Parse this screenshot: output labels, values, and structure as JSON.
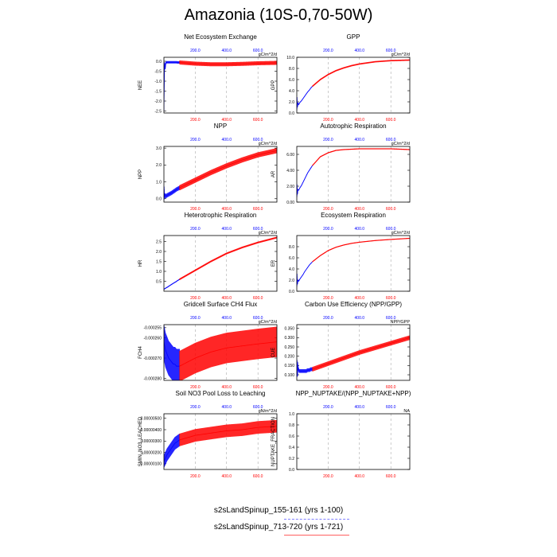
{
  "title": "Amazonia (10S-0,70-50W)",
  "legend": {
    "entries": [
      {
        "label": "s2sLandSpinup_155-161 (yrs 1-100)",
        "color": "#0000ff",
        "style": "dashed"
      },
      {
        "label": "s2sLandSpinup_713-720 (yrs 1-721)",
        "color": "#ff0000",
        "style": "solid"
      }
    ]
  },
  "chart_data": [
    {
      "type": "line",
      "title": "Net Ecosystem Exchange",
      "ylabel": "NEE",
      "units": "gC/m^2/d",
      "ylim": [
        -2.6,
        0.2
      ],
      "yticks": [
        0.0,
        -0.5,
        -1.0,
        -1.5,
        -2.0,
        -2.5
      ],
      "yticklabels": [
        "0.0",
        "-0.5",
        "-1.0",
        "-1.5",
        "-2.0",
        "-2.5"
      ],
      "xlim": [
        0,
        721
      ],
      "xticks_bottom": [
        "200.0",
        "400.0",
        "600.0"
      ],
      "xticks_top": [
        "200.0",
        "400.0",
        "600.0"
      ],
      "series": [
        {
          "name": "s2sLandSpinup_155-161",
          "color": "#0000ff",
          "x": [
            0,
            2,
            4,
            6,
            8,
            10,
            12,
            15,
            20,
            30,
            40,
            50,
            60,
            70,
            80,
            90,
            100
          ],
          "y": [
            -2.5,
            -0.6,
            -0.1,
            -0.15,
            -0.4,
            -0.2,
            -0.1,
            -0.05,
            -0.05,
            -0.05,
            -0.05,
            -0.05,
            -0.05,
            -0.05,
            -0.05,
            -0.06,
            -0.06
          ],
          "spread": 0.06
        },
        {
          "name": "s2sLandSpinup_713-720",
          "color": "#ff0000",
          "x": [
            100,
            200,
            300,
            400,
            500,
            600,
            721
          ],
          "y": [
            -0.06,
            -0.12,
            -0.15,
            -0.15,
            -0.13,
            -0.1,
            -0.08
          ],
          "spread": 0.1
        }
      ]
    },
    {
      "type": "line",
      "title": "GPP",
      "ylabel": "GPP",
      "units": "gC/m^2/d",
      "ylim": [
        0,
        10
      ],
      "yticks": [
        0,
        2,
        4,
        6,
        8,
        10
      ],
      "yticklabels": [
        "0.0",
        "2.0",
        "4.0",
        "6.0",
        "8.0",
        "10.0"
      ],
      "xlim": [
        0,
        721
      ],
      "xticks_bottom": [
        "200.0",
        "400.0",
        "600.0"
      ],
      "xticks_top": [
        "200.0",
        "400.0",
        "600.0"
      ],
      "series": [
        {
          "name": "s2sLandSpinup_155-161",
          "color": "#0000ff",
          "x": [
            0,
            2,
            5,
            8,
            12,
            20,
            30,
            40,
            50,
            60,
            70,
            80,
            90,
            100
          ],
          "y": [
            0.5,
            2.8,
            1.0,
            1.8,
            1.5,
            1.9,
            2.2,
            2.6,
            3.0,
            3.4,
            3.8,
            4.1,
            4.5,
            4.8
          ],
          "spread": 0.05
        },
        {
          "name": "s2sLandSpinup_713-720",
          "color": "#ff0000",
          "x": [
            100,
            150,
            200,
            250,
            300,
            350,
            400,
            450,
            500,
            600,
            721
          ],
          "y": [
            4.8,
            6.0,
            6.9,
            7.6,
            8.1,
            8.5,
            8.8,
            9.0,
            9.2,
            9.4,
            9.5
          ],
          "spread": 0.12
        }
      ]
    },
    {
      "type": "line",
      "title": "NPP",
      "ylabel": "NPP",
      "units": "gC/m^2/d",
      "ylim": [
        -0.2,
        3.1
      ],
      "yticks": [
        0,
        1,
        2,
        3
      ],
      "yticklabels": [
        "0.0",
        "1.0",
        "2.0",
        "3.0"
      ],
      "xlim": [
        0,
        721
      ],
      "xticks_bottom": [
        "200.0",
        "400.0",
        "600.0"
      ],
      "xticks_top": [
        "200.0",
        "400.0",
        "600.0"
      ],
      "series": [
        {
          "name": "s2sLandSpinup_155-161",
          "color": "#0000ff",
          "x": [
            0,
            2,
            5,
            8,
            12,
            20,
            30,
            40,
            50,
            60,
            70,
            80,
            90,
            100
          ],
          "y": [
            -0.1,
            0.6,
            0.1,
            0.2,
            0.15,
            0.2,
            0.25,
            0.3,
            0.35,
            0.42,
            0.48,
            0.55,
            0.6,
            0.65
          ],
          "spread": 0.12
        },
        {
          "name": "s2sLandSpinup_713-720",
          "color": "#ff0000",
          "x": [
            100,
            200,
            300,
            400,
            500,
            600,
            721
          ],
          "y": [
            0.65,
            1.1,
            1.55,
            1.95,
            2.3,
            2.6,
            2.85
          ],
          "spread": 0.15
        }
      ]
    },
    {
      "type": "line",
      "title": "Autotrophic Respiration",
      "ylabel": "AR",
      "units": "gC/m^2/d",
      "ylim": [
        0,
        7
      ],
      "yticks": [
        0,
        2,
        4,
        6
      ],
      "yticklabels": [
        "0.00",
        "2.00",
        "4.00",
        "6.00"
      ],
      "xlim": [
        0,
        721
      ],
      "xticks_bottom": [
        "200.0",
        "400.0",
        "600.0"
      ],
      "xticks_top": [
        "200.0",
        "400.0",
        "600.0"
      ],
      "series": [
        {
          "name": "s2sLandSpinup_155-161",
          "color": "#0000ff",
          "x": [
            0,
            2,
            5,
            8,
            12,
            20,
            30,
            40,
            50,
            60,
            70,
            80,
            90,
            100
          ],
          "y": [
            0.6,
            2.2,
            1.0,
            1.6,
            1.5,
            1.8,
            2.1,
            2.5,
            2.9,
            3.3,
            3.7,
            4.0,
            4.3,
            4.6
          ],
          "spread": 0.04
        },
        {
          "name": "s2sLandSpinup_713-720",
          "color": "#ff0000",
          "x": [
            100,
            150,
            200,
            250,
            300,
            400,
            500,
            600,
            721
          ],
          "y": [
            4.6,
            5.7,
            6.2,
            6.5,
            6.6,
            6.7,
            6.7,
            6.7,
            6.6
          ],
          "spread": 0.06
        }
      ]
    },
    {
      "type": "line",
      "title": "Heterotrophic Respiration",
      "ylabel": "HR",
      "units": "gC/m^2/d",
      "ylim": [
        0,
        2.8
      ],
      "yticks": [
        0.5,
        1.0,
        1.5,
        2.0,
        2.5
      ],
      "yticklabels": [
        "0.5",
        "1.0",
        "1.5",
        "2.0",
        "2.5"
      ],
      "xlim": [
        0,
        721
      ],
      "xticks_bottom": [
        "200.0",
        "400.0",
        "600.0"
      ],
      "xticks_top": [
        "200.0",
        "400.0",
        "600.0"
      ],
      "series": [
        {
          "name": "s2sLandSpinup_155-161",
          "color": "#0000ff",
          "x": [
            0,
            25,
            50,
            75,
            100
          ],
          "y": [
            0.1,
            0.22,
            0.35,
            0.47,
            0.6
          ],
          "spread": 0.02
        },
        {
          "name": "s2sLandSpinup_713-720",
          "color": "#ff0000",
          "x": [
            100,
            200,
            300,
            400,
            500,
            600,
            721
          ],
          "y": [
            0.6,
            1.05,
            1.5,
            1.9,
            2.2,
            2.45,
            2.7
          ],
          "spread": 0.04
        }
      ]
    },
    {
      "type": "line",
      "title": "Ecosystem Respiration",
      "ylabel": "ER",
      "units": "gC/m^2/d",
      "ylim": [
        0,
        10
      ],
      "yticks": [
        0,
        2,
        4,
        6,
        8
      ],
      "yticklabels": [
        "0.0",
        "2.0",
        "4.0",
        "6.0",
        "8.0"
      ],
      "xlim": [
        0,
        721
      ],
      "xticks_bottom": [
        "200.0",
        "400.0",
        "600.0"
      ],
      "xticks_top": [
        "200.0",
        "400.0",
        "600.0"
      ],
      "series": [
        {
          "name": "s2sLandSpinup_155-161",
          "color": "#0000ff",
          "x": [
            0,
            2,
            5,
            8,
            12,
            20,
            30,
            40,
            50,
            60,
            70,
            80,
            90,
            100
          ],
          "y": [
            0.8,
            3.1,
            1.2,
            2.0,
            1.8,
            2.2,
            2.6,
            3.0,
            3.5,
            3.9,
            4.3,
            4.7,
            5.0,
            5.3
          ],
          "spread": 0.04
        },
        {
          "name": "s2sLandSpinup_713-720",
          "color": "#ff0000",
          "x": [
            100,
            150,
            200,
            250,
            300,
            350,
            400,
            500,
            600,
            721
          ],
          "y": [
            5.3,
            6.4,
            7.3,
            7.9,
            8.3,
            8.6,
            8.8,
            9.1,
            9.3,
            9.5
          ],
          "spread": 0.08
        }
      ]
    },
    {
      "type": "line",
      "title": "Gridcell Surface CH4 Flux",
      "ylabel": "FCH4",
      "units": "gC/m^2/d",
      "ylim": [
        -0.000281,
        -0.0002535
      ],
      "yticks": [
        -0.00026,
        -0.00027,
        -0.00028
      ],
      "yticklabels": [
        "-0.000260",
        "-0.000270",
        "-0.000280"
      ],
      "extra_tick": {
        "value": -0.000255,
        "label": "-0.000255"
      },
      "xlim": [
        0,
        721
      ],
      "xticks_bottom": [
        "200.0",
        "400.0",
        "600.0"
      ],
      "xticks_top": [
        "200.0",
        "400.0",
        "600.0"
      ],
      "series": [
        {
          "name": "s2sLandSpinup_155-161",
          "color": "#0000ff",
          "x": [
            0,
            10,
            20,
            30,
            40,
            50,
            60,
            70,
            80,
            90,
            100
          ],
          "y": [
            -0.000262,
            -0.000266,
            -0.000268,
            -0.00027,
            -0.000271,
            -0.000272,
            -0.000273,
            -0.000273,
            -0.000274,
            -0.000274,
            -0.000274
          ],
          "spread": 8.5e-06
        },
        {
          "name": "s2sLandSpinup_713-720",
          "color": "#ff0000",
          "x": [
            100,
            200,
            300,
            400,
            500,
            600,
            721
          ],
          "y": [
            -0.000274,
            -0.00027,
            -0.000267,
            -0.000265,
            -0.000264,
            -0.000263,
            -0.000262
          ],
          "spread": 7.5e-06
        }
      ]
    },
    {
      "type": "line",
      "title": "Carbon Use Efficiency (NPP/GPP)",
      "ylabel": "CUE",
      "units": "NPP/GPP",
      "ylim": [
        0.07,
        0.37
      ],
      "yticks": [
        0.1,
        0.15,
        0.2,
        0.25,
        0.3,
        0.35
      ],
      "yticklabels": [
        "0.100",
        "0.150",
        "0.200",
        "0.250",
        "0.300",
        "0.350"
      ],
      "xlim": [
        0,
        721
      ],
      "xticks_bottom": [
        "200.0",
        "400.0",
        "600.0"
      ],
      "xticks_top": [
        "200.0",
        "400.0",
        "600.0"
      ],
      "series": [
        {
          "name": "s2sLandSpinup_155-161",
          "color": "#0000ff",
          "x": [
            0,
            2,
            4,
            6,
            10,
            15,
            20,
            30,
            40,
            50,
            60,
            70,
            80,
            90,
            100
          ],
          "y": [
            0.12,
            0.17,
            0.09,
            0.16,
            0.13,
            0.12,
            0.12,
            0.12,
            0.12,
            0.12,
            0.12,
            0.125,
            0.125,
            0.13,
            0.13
          ],
          "spread": 0.01
        },
        {
          "name": "s2sLandSpinup_713-720",
          "color": "#ff0000",
          "x": [
            100,
            200,
            300,
            400,
            500,
            600,
            721
          ],
          "y": [
            0.13,
            0.16,
            0.19,
            0.22,
            0.245,
            0.27,
            0.3
          ],
          "spread": 0.012
        }
      ]
    },
    {
      "type": "line",
      "title": "Soil NO3 Pool Loss to Leaching",
      "ylabel": "SMIN_NO3_LEACHED",
      "units": "gN/m^2/d",
      "ylim": [
        5e-07,
        5.4e-06
      ],
      "yticks": [
        1e-06,
        2e-06,
        3e-06,
        4e-06,
        5e-06
      ],
      "yticklabels": [
        "0.00000100",
        "0.00000200",
        "0.00000300",
        "0.00000400",
        "0.00000500"
      ],
      "xlim": [
        0,
        721
      ],
      "xticks_bottom": [
        "200.0",
        "400.0",
        "600.0"
      ],
      "xticks_top": [
        "200.0",
        "400.0",
        "600.0"
      ],
      "series": [
        {
          "name": "s2sLandSpinup_155-161",
          "color": "#0000ff",
          "x": [
            0,
            10,
            20,
            30,
            40,
            50,
            60,
            70,
            80,
            90,
            100
          ],
          "y": [
            1.2e-06,
            1.5e-06,
            1.8e-06,
            2e-06,
            2.2e-06,
            2.4e-06,
            2.6e-06,
            2.8e-06,
            2.9e-06,
            3e-06,
            3.1e-06
          ],
          "spread": 5.5e-07
        },
        {
          "name": "s2sLandSpinup_713-720",
          "color": "#ff0000",
          "x": [
            100,
            200,
            300,
            400,
            500,
            600,
            721
          ],
          "y": [
            3.1e-06,
            3.5e-06,
            3.7e-06,
            3.9e-06,
            4e-06,
            4.2e-06,
            4.3e-06
          ],
          "spread": 5.5e-07
        }
      ]
    },
    {
      "type": "line",
      "title": "NPP_NUPTAKE/(NPP_NUPTAKE+NPP)",
      "ylabel": "NUPTAKE_FRACTION",
      "units": "NA",
      "ylim": [
        0,
        1
      ],
      "yticks": [
        0,
        0.2,
        0.4,
        0.6,
        0.8,
        1.0
      ],
      "yticklabels": [
        "0.0",
        "0.2",
        "0.4",
        "0.6",
        "0.8",
        "1.0"
      ],
      "xlim": [
        0,
        721
      ],
      "xticks_bottom": [
        "200.0",
        "400.0",
        "600.0"
      ],
      "xticks_top": [
        "200.0",
        "400.0",
        "600.0"
      ],
      "series": []
    }
  ]
}
